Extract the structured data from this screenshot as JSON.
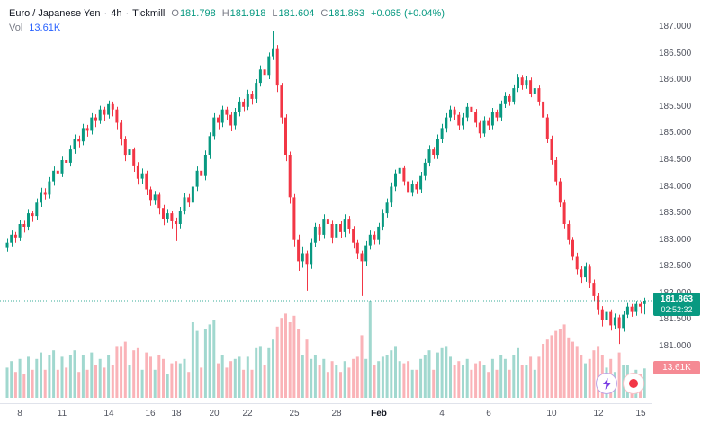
{
  "legend": {
    "title": {
      "symbol": "Euro / Japanese Yen",
      "sep1": "·",
      "interval": "4h",
      "sep2": "·",
      "exchange": "Tickmill"
    },
    "ohlc": {
      "o_label": "O",
      "o": "181.798",
      "h_label": "H",
      "h": "181.918",
      "l_label": "L",
      "l": "181.604",
      "c_label": "C",
      "c": "181.863",
      "change": "+0.065 (+0.04%)"
    },
    "vol_label": "Vol",
    "vol_value": "13.61K"
  },
  "price_scale": {
    "labels": [
      "187.000",
      "186.500",
      "186.000",
      "185.500",
      "185.000",
      "184.500",
      "184.000",
      "183.500",
      "183.000",
      "182.500",
      "182.000",
      "181.500",
      "181.000"
    ],
    "current_badge": {
      "price": "181.863",
      "countdown": "02:52:32"
    },
    "volume_badge": "13.61K"
  },
  "time_scale": {
    "ticks": [
      {
        "label": "8",
        "i": 3
      },
      {
        "label": "11",
        "i": 13
      },
      {
        "label": "14",
        "i": 24
      },
      {
        "label": "16",
        "i": 34
      },
      {
        "label": "18",
        "i": 40
      },
      {
        "label": "20",
        "i": 49
      },
      {
        "label": "22",
        "i": 57
      },
      {
        "label": "25",
        "i": 68
      },
      {
        "label": "28",
        "i": 78
      },
      {
        "label": "Feb",
        "i": 88,
        "em": true
      },
      {
        "label": "4",
        "i": 103
      },
      {
        "label": "6",
        "i": 114
      },
      {
        "label": "10",
        "i": 129
      },
      {
        "label": "12",
        "i": 140
      },
      {
        "label": "15",
        "i": 150
      }
    ]
  },
  "colors": {
    "up": "#089981",
    "down": "#f23645",
    "vol_up": "rgba(8,153,129,0.38)",
    "vol_down": "rgba(242,54,69,0.38)",
    "price_line": "#089981",
    "axis_text": "#50535e",
    "grid_line": "#e0e3eb",
    "badge_price_bg": "#089981",
    "badge_volume_bg": "#f58a94",
    "bolt": "#7b3fe4"
  },
  "chart_data": {
    "type": "candlestick",
    "title": "Euro / Japanese Yen · 4h · Tickmill",
    "y_axis": {
      "side": "right",
      "min": 181.0,
      "max": 187.0,
      "tick_step": 0.5,
      "grid": false
    },
    "last_price": 181.863,
    "last_volume_label": "13.61K",
    "volume_unit": "K",
    "candle_format": [
      "open",
      "high",
      "low",
      "close",
      "volume_K"
    ],
    "candles": [
      [
        182.85,
        183.02,
        182.78,
        182.95,
        14
      ],
      [
        182.95,
        183.18,
        182.88,
        183.1,
        17
      ],
      [
        183.1,
        183.15,
        182.95,
        183.05,
        12
      ],
      [
        183.05,
        183.38,
        182.98,
        183.3,
        18
      ],
      [
        183.3,
        183.36,
        183.14,
        183.25,
        11
      ],
      [
        183.25,
        183.58,
        183.18,
        183.5,
        19
      ],
      [
        183.5,
        183.55,
        183.34,
        183.45,
        13
      ],
      [
        183.45,
        183.78,
        183.38,
        183.7,
        18
      ],
      [
        183.7,
        183.98,
        183.62,
        183.9,
        21
      ],
      [
        183.9,
        183.97,
        183.76,
        183.85,
        13
      ],
      [
        183.85,
        184.18,
        183.78,
        184.1,
        20
      ],
      [
        184.1,
        184.38,
        184.02,
        184.3,
        22
      ],
      [
        184.3,
        184.36,
        184.15,
        184.25,
        13
      ],
      [
        184.25,
        184.58,
        184.18,
        184.5,
        19
      ],
      [
        184.5,
        184.56,
        184.34,
        184.45,
        14
      ],
      [
        184.45,
        184.78,
        184.38,
        184.7,
        20
      ],
      [
        184.7,
        184.98,
        184.62,
        184.9,
        22
      ],
      [
        184.9,
        184.96,
        184.74,
        184.85,
        12
      ],
      [
        184.85,
        185.18,
        184.78,
        185.1,
        20
      ],
      [
        185.1,
        185.16,
        184.94,
        185.05,
        13
      ],
      [
        185.05,
        185.38,
        184.98,
        185.3,
        21
      ],
      [
        185.3,
        185.36,
        185.12,
        185.25,
        15
      ],
      [
        185.25,
        185.52,
        185.18,
        185.45,
        18
      ],
      [
        185.45,
        185.5,
        185.24,
        185.35,
        14
      ],
      [
        185.35,
        185.62,
        185.28,
        185.55,
        20
      ],
      [
        185.55,
        185.6,
        185.32,
        185.45,
        15
      ],
      [
        185.45,
        185.5,
        185.08,
        185.2,
        24
      ],
      [
        185.2,
        185.26,
        184.78,
        184.9,
        24
      ],
      [
        184.9,
        184.95,
        184.48,
        184.6,
        26
      ],
      [
        184.6,
        184.82,
        184.52,
        184.7,
        15
      ],
      [
        184.7,
        184.74,
        184.28,
        184.4,
        22
      ],
      [
        184.4,
        184.46,
        184.04,
        184.15,
        23
      ],
      [
        184.15,
        184.34,
        184.06,
        184.25,
        13
      ],
      [
        184.25,
        184.3,
        183.84,
        183.95,
        21
      ],
      [
        183.95,
        184.0,
        183.64,
        183.75,
        19
      ],
      [
        183.75,
        183.92,
        183.66,
        183.85,
        13
      ],
      [
        183.85,
        183.9,
        183.48,
        183.6,
        20
      ],
      [
        183.6,
        183.66,
        183.28,
        183.4,
        18
      ],
      [
        183.4,
        183.58,
        183.32,
        183.5,
        11
      ],
      [
        183.5,
        183.55,
        183.22,
        183.35,
        16
      ],
      [
        183.35,
        183.42,
        182.98,
        183.3,
        17
      ],
      [
        183.3,
        183.62,
        183.22,
        183.55,
        16
      ],
      [
        183.55,
        183.88,
        183.48,
        183.8,
        18
      ],
      [
        183.8,
        183.86,
        183.62,
        183.7,
        12
      ],
      [
        183.7,
        184.08,
        183.62,
        184.0,
        35
      ],
      [
        184.0,
        184.38,
        183.92,
        184.3,
        31
      ],
      [
        184.3,
        184.35,
        184.08,
        184.2,
        14
      ],
      [
        184.2,
        184.68,
        184.12,
        184.6,
        32
      ],
      [
        184.6,
        185.02,
        184.52,
        184.95,
        34
      ],
      [
        184.95,
        185.38,
        184.88,
        185.3,
        36
      ],
      [
        185.3,
        185.35,
        185.08,
        185.2,
        16
      ],
      [
        185.2,
        185.52,
        185.12,
        185.45,
        20
      ],
      [
        185.45,
        185.5,
        185.26,
        185.35,
        14
      ],
      [
        185.35,
        185.4,
        185.04,
        185.15,
        17
      ],
      [
        185.15,
        185.48,
        185.08,
        185.4,
        18
      ],
      [
        185.4,
        185.68,
        185.32,
        185.6,
        19
      ],
      [
        185.6,
        185.65,
        185.42,
        185.5,
        13
      ],
      [
        185.5,
        185.82,
        185.44,
        185.75,
        19
      ],
      [
        185.75,
        185.8,
        185.54,
        185.65,
        13
      ],
      [
        185.65,
        186.02,
        185.58,
        185.95,
        23
      ],
      [
        185.95,
        186.28,
        185.88,
        186.2,
        24
      ],
      [
        186.2,
        186.26,
        186.0,
        186.1,
        15
      ],
      [
        186.1,
        186.52,
        186.02,
        186.45,
        23
      ],
      [
        186.45,
        186.92,
        186.38,
        186.6,
        27
      ],
      [
        186.6,
        186.66,
        185.78,
        185.9,
        33
      ],
      [
        185.9,
        185.95,
        185.18,
        185.3,
        37
      ],
      [
        185.3,
        185.36,
        184.48,
        184.6,
        39
      ],
      [
        184.6,
        184.66,
        183.68,
        183.8,
        35
      ],
      [
        183.8,
        183.86,
        182.88,
        183.0,
        38
      ],
      [
        183.0,
        183.1,
        182.42,
        182.6,
        32
      ],
      [
        182.6,
        182.88,
        182.48,
        182.75,
        20
      ],
      [
        182.75,
        182.8,
        182.05,
        182.55,
        27
      ],
      [
        182.55,
        183.02,
        182.46,
        182.95,
        18
      ],
      [
        182.95,
        183.32,
        182.86,
        183.25,
        20
      ],
      [
        183.25,
        183.3,
        182.98,
        183.1,
        15
      ],
      [
        183.1,
        183.48,
        183.02,
        183.4,
        18
      ],
      [
        183.4,
        183.45,
        183.18,
        183.3,
        12
      ],
      [
        183.3,
        183.36,
        182.94,
        183.05,
        17
      ],
      [
        183.05,
        183.38,
        182.96,
        183.3,
        15
      ],
      [
        183.3,
        183.35,
        183.04,
        183.15,
        12
      ],
      [
        183.15,
        183.48,
        183.06,
        183.4,
        17
      ],
      [
        183.4,
        183.45,
        183.12,
        183.2,
        14
      ],
      [
        183.2,
        183.26,
        182.84,
        182.95,
        18
      ],
      [
        182.95,
        183.0,
        182.64,
        182.75,
        19
      ],
      [
        182.75,
        182.8,
        181.95,
        182.6,
        29
      ],
      [
        182.6,
        182.98,
        182.52,
        182.9,
        18
      ],
      [
        182.9,
        183.18,
        182.82,
        183.1,
        45
      ],
      [
        183.1,
        183.16,
        182.92,
        183.0,
        15
      ],
      [
        183.0,
        183.32,
        182.92,
        183.25,
        17
      ],
      [
        183.25,
        183.58,
        183.18,
        183.5,
        19
      ],
      [
        183.5,
        183.78,
        183.42,
        183.7,
        20
      ],
      [
        183.7,
        184.08,
        183.62,
        184.0,
        22
      ],
      [
        184.0,
        184.32,
        183.92,
        184.25,
        24
      ],
      [
        184.25,
        184.42,
        184.16,
        184.35,
        17
      ],
      [
        184.35,
        184.4,
        184.02,
        184.1,
        16
      ],
      [
        184.1,
        184.15,
        183.82,
        183.9,
        17
      ],
      [
        183.9,
        184.12,
        183.82,
        184.05,
        13
      ],
      [
        184.05,
        184.1,
        183.86,
        183.95,
        13
      ],
      [
        183.95,
        184.28,
        183.88,
        184.2,
        18
      ],
      [
        184.2,
        184.52,
        184.12,
        184.45,
        20
      ],
      [
        184.45,
        184.78,
        184.38,
        184.7,
        22
      ],
      [
        184.7,
        184.75,
        184.52,
        184.6,
        13
      ],
      [
        184.6,
        184.98,
        184.52,
        184.9,
        21
      ],
      [
        184.9,
        185.18,
        184.82,
        185.1,
        23
      ],
      [
        185.1,
        185.38,
        185.02,
        185.3,
        24
      ],
      [
        185.3,
        185.52,
        185.22,
        185.45,
        19
      ],
      [
        185.45,
        185.5,
        185.26,
        185.35,
        15
      ],
      [
        185.35,
        185.4,
        185.06,
        185.15,
        17
      ],
      [
        185.15,
        185.38,
        185.08,
        185.3,
        15
      ],
      [
        185.3,
        185.58,
        185.22,
        185.5,
        18
      ],
      [
        185.5,
        185.55,
        185.32,
        185.4,
        13
      ],
      [
        185.4,
        185.46,
        185.12,
        185.2,
        16
      ],
      [
        185.2,
        185.25,
        184.92,
        185.0,
        17
      ],
      [
        185.0,
        185.32,
        184.94,
        185.25,
        15
      ],
      [
        185.25,
        185.3,
        185.06,
        185.15,
        12
      ],
      [
        185.15,
        185.48,
        185.08,
        185.4,
        18
      ],
      [
        185.4,
        185.45,
        185.22,
        185.3,
        13
      ],
      [
        185.3,
        185.62,
        185.24,
        185.55,
        20
      ],
      [
        185.55,
        185.78,
        185.48,
        185.7,
        18
      ],
      [
        185.7,
        185.75,
        185.52,
        185.6,
        13
      ],
      [
        185.6,
        185.92,
        185.54,
        185.85,
        20
      ],
      [
        185.85,
        186.12,
        185.78,
        186.05,
        23
      ],
      [
        186.05,
        186.1,
        185.82,
        185.9,
        15
      ],
      [
        185.9,
        186.08,
        185.84,
        186.0,
        15
      ],
      [
        186.0,
        186.05,
        185.68,
        185.75,
        19
      ],
      [
        185.75,
        185.92,
        185.68,
        185.85,
        13
      ],
      [
        185.85,
        185.9,
        185.52,
        185.6,
        19
      ],
      [
        185.6,
        185.66,
        185.22,
        185.3,
        25
      ],
      [
        185.3,
        185.36,
        184.82,
        184.9,
        27
      ],
      [
        184.9,
        184.96,
        184.42,
        184.5,
        29
      ],
      [
        184.5,
        184.56,
        184.02,
        184.1,
        31
      ],
      [
        184.1,
        184.16,
        183.62,
        183.7,
        32
      ],
      [
        183.7,
        183.76,
        183.22,
        183.3,
        34
      ],
      [
        183.3,
        183.36,
        182.92,
        183.0,
        28
      ],
      [
        183.0,
        183.06,
        182.62,
        182.7,
        26
      ],
      [
        182.7,
        182.76,
        182.36,
        182.45,
        24
      ],
      [
        182.45,
        182.52,
        182.2,
        182.3,
        20
      ],
      [
        182.3,
        182.58,
        182.22,
        182.5,
        16
      ],
      [
        182.5,
        182.55,
        182.1,
        182.2,
        18
      ],
      [
        182.2,
        182.26,
        181.86,
        181.95,
        22
      ],
      [
        181.95,
        182.0,
        181.6,
        181.7,
        24
      ],
      [
        181.7,
        181.76,
        181.38,
        181.5,
        20
      ],
      [
        181.5,
        181.72,
        181.44,
        181.65,
        14
      ],
      [
        181.65,
        181.7,
        181.3,
        181.4,
        18
      ],
      [
        181.4,
        181.62,
        181.34,
        181.55,
        12
      ],
      [
        181.55,
        181.6,
        181.05,
        181.35,
        21
      ],
      [
        181.35,
        181.66,
        181.28,
        181.6,
        15
      ],
      [
        181.6,
        181.82,
        181.54,
        181.75,
        15
      ],
      [
        181.75,
        181.8,
        181.56,
        181.65,
        11
      ],
      [
        181.65,
        181.86,
        181.58,
        181.8,
        13
      ],
      [
        181.8,
        181.85,
        181.62,
        181.75,
        11
      ],
      [
        181.798,
        181.918,
        181.604,
        181.863,
        13.61
      ]
    ]
  }
}
